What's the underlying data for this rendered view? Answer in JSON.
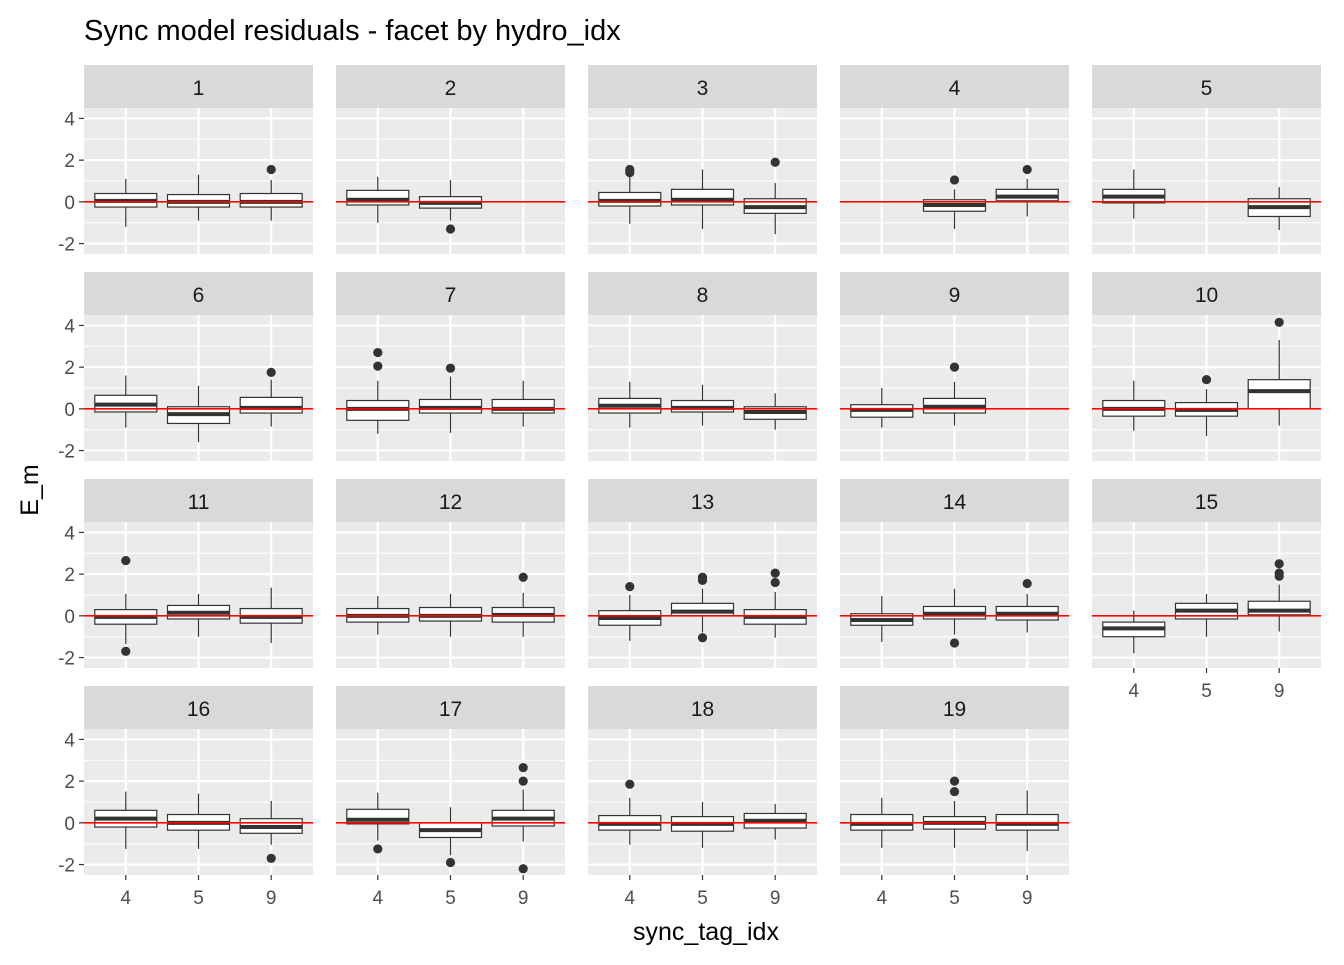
{
  "chart_data": {
    "type": "boxplot",
    "title": "Sync model residuals - facet by hydro_idx",
    "xlabel": "sync_tag_idx",
    "ylabel": "E_m",
    "x_categories": [
      "4",
      "5",
      "9"
    ],
    "y_ticks": [
      -2,
      0,
      2,
      4
    ],
    "ylim": [
      -2.5,
      4.5
    ],
    "reference_line": {
      "y": 0,
      "color": "#ff0000"
    },
    "colors": {
      "panel_bg": "#ebebeb",
      "strip_bg": "#d9d9d9",
      "grid": "#ffffff",
      "box_fill": "#ffffff",
      "box_line": "#333333",
      "text": "#4d4d4d"
    },
    "facets": [
      {
        "label": "1",
        "boxes": [
          {
            "x": "4",
            "low": -1.2,
            "q1": -0.25,
            "median": 0.05,
            "q3": 0.4,
            "high": 1.1,
            "outliers": []
          },
          {
            "x": "5",
            "low": -0.9,
            "q1": -0.25,
            "median": 0.0,
            "q3": 0.35,
            "high": 1.3,
            "outliers": []
          },
          {
            "x": "9",
            "low": -0.9,
            "q1": -0.25,
            "median": 0.0,
            "q3": 0.4,
            "high": 1.05,
            "outliers": [
              1.55
            ]
          }
        ]
      },
      {
        "label": "2",
        "boxes": [
          {
            "x": "4",
            "low": -1.0,
            "q1": -0.15,
            "median": 0.1,
            "q3": 0.55,
            "high": 1.2,
            "outliers": []
          },
          {
            "x": "5",
            "low": -0.9,
            "q1": -0.3,
            "median": -0.05,
            "q3": 0.25,
            "high": 1.05,
            "outliers": [
              -1.3
            ]
          }
        ]
      },
      {
        "label": "3",
        "boxes": [
          {
            "x": "4",
            "low": -1.05,
            "q1": -0.2,
            "median": 0.05,
            "q3": 0.45,
            "high": 1.2,
            "outliers": [
              1.4,
              1.55
            ]
          },
          {
            "x": "5",
            "low": -1.3,
            "q1": -0.15,
            "median": 0.1,
            "q3": 0.6,
            "high": 1.55,
            "outliers": []
          },
          {
            "x": "9",
            "low": -1.55,
            "q1": -0.55,
            "median": -0.25,
            "q3": 0.15,
            "high": 0.9,
            "outliers": [
              1.9
            ]
          }
        ]
      },
      {
        "label": "4",
        "boxes": [
          {
            "x": "5",
            "low": -1.3,
            "q1": -0.45,
            "median": -0.15,
            "q3": 0.1,
            "high": 0.6,
            "outliers": [
              1.05
            ]
          },
          {
            "x": "9",
            "low": -0.7,
            "q1": 0.05,
            "median": 0.25,
            "q3": 0.6,
            "high": 1.1,
            "outliers": [
              1.55
            ]
          }
        ]
      },
      {
        "label": "5",
        "boxes": [
          {
            "x": "4",
            "low": -0.8,
            "q1": -0.05,
            "median": 0.25,
            "q3": 0.6,
            "high": 1.55,
            "outliers": []
          },
          {
            "x": "9",
            "low": -1.35,
            "q1": -0.7,
            "median": -0.25,
            "q3": 0.15,
            "high": 0.7,
            "outliers": []
          }
        ]
      },
      {
        "label": "6",
        "boxes": [
          {
            "x": "4",
            "low": -0.9,
            "q1": -0.15,
            "median": 0.2,
            "q3": 0.65,
            "high": 1.6,
            "outliers": []
          },
          {
            "x": "5",
            "low": -1.6,
            "q1": -0.7,
            "median": -0.25,
            "q3": 0.1,
            "high": 1.1,
            "outliers": []
          },
          {
            "x": "9",
            "low": -0.85,
            "q1": -0.2,
            "median": 0.05,
            "q3": 0.55,
            "high": 1.4,
            "outliers": [
              1.75
            ]
          }
        ]
      },
      {
        "label": "7",
        "boxes": [
          {
            "x": "4",
            "low": -1.2,
            "q1": -0.55,
            "median": 0.0,
            "q3": 0.4,
            "high": 1.35,
            "outliers": [
              2.05,
              2.7
            ]
          },
          {
            "x": "5",
            "low": -1.15,
            "q1": -0.2,
            "median": 0.05,
            "q3": 0.45,
            "high": 1.55,
            "outliers": [
              1.95
            ]
          },
          {
            "x": "9",
            "low": -0.85,
            "q1": -0.2,
            "median": 0.0,
            "q3": 0.45,
            "high": 1.35,
            "outliers": []
          }
        ]
      },
      {
        "label": "8",
        "boxes": [
          {
            "x": "4",
            "low": -0.9,
            "q1": -0.2,
            "median": 0.15,
            "q3": 0.5,
            "high": 1.3,
            "outliers": []
          },
          {
            "x": "5",
            "low": -0.8,
            "q1": -0.15,
            "median": 0.05,
            "q3": 0.4,
            "high": 1.15,
            "outliers": []
          },
          {
            "x": "9",
            "low": -1.0,
            "q1": -0.5,
            "median": -0.15,
            "q3": 0.1,
            "high": 0.75,
            "outliers": []
          }
        ]
      },
      {
        "label": "9",
        "boxes": [
          {
            "x": "4",
            "low": -0.9,
            "q1": -0.4,
            "median": -0.05,
            "q3": 0.2,
            "high": 1.0,
            "outliers": []
          },
          {
            "x": "5",
            "low": -0.8,
            "q1": -0.2,
            "median": 0.1,
            "q3": 0.5,
            "high": 1.3,
            "outliers": [
              2.0
            ]
          }
        ]
      },
      {
        "label": "10",
        "boxes": [
          {
            "x": "4",
            "low": -1.05,
            "q1": -0.35,
            "median": 0.0,
            "q3": 0.4,
            "high": 1.35,
            "outliers": []
          },
          {
            "x": "5",
            "low": -1.3,
            "q1": -0.35,
            "median": -0.05,
            "q3": 0.3,
            "high": 0.95,
            "outliers": [
              1.4
            ]
          },
          {
            "x": "9",
            "low": -0.8,
            "q1": 0.0,
            "median": 0.85,
            "q3": 1.4,
            "high": 3.3,
            "outliers": [
              4.15
            ]
          }
        ]
      },
      {
        "label": "11",
        "boxes": [
          {
            "x": "4",
            "low": -1.35,
            "q1": -0.4,
            "median": -0.05,
            "q3": 0.3,
            "high": 1.05,
            "outliers": [
              2.65,
              -1.7
            ]
          },
          {
            "x": "5",
            "low": -1.0,
            "q1": -0.15,
            "median": 0.15,
            "q3": 0.5,
            "high": 1.05,
            "outliers": []
          },
          {
            "x": "9",
            "low": -1.3,
            "q1": -0.35,
            "median": -0.05,
            "q3": 0.35,
            "high": 1.35,
            "outliers": []
          }
        ]
      },
      {
        "label": "12",
        "boxes": [
          {
            "x": "4",
            "low": -0.9,
            "q1": -0.3,
            "median": 0.0,
            "q3": 0.35,
            "high": 0.95,
            "outliers": []
          },
          {
            "x": "5",
            "low": -1.0,
            "q1": -0.25,
            "median": 0.0,
            "q3": 0.4,
            "high": 1.05,
            "outliers": []
          },
          {
            "x": "9",
            "low": -1.0,
            "q1": -0.3,
            "median": 0.05,
            "q3": 0.4,
            "high": 1.1,
            "outliers": [
              1.85
            ]
          }
        ]
      },
      {
        "label": "13",
        "boxes": [
          {
            "x": "4",
            "low": -1.2,
            "q1": -0.45,
            "median": -0.1,
            "q3": 0.25,
            "high": 1.0,
            "outliers": [
              1.4
            ]
          },
          {
            "x": "5",
            "low": -0.8,
            "q1": 0.0,
            "median": 0.2,
            "q3": 0.6,
            "high": 1.3,
            "outliers": [
              1.7,
              1.85,
              -1.05
            ]
          },
          {
            "x": "9",
            "low": -1.05,
            "q1": -0.4,
            "median": -0.05,
            "q3": 0.3,
            "high": 1.15,
            "outliers": [
              1.6,
              2.05
            ]
          }
        ]
      },
      {
        "label": "14",
        "boxes": [
          {
            "x": "4",
            "low": -1.25,
            "q1": -0.45,
            "median": -0.2,
            "q3": 0.1,
            "high": 0.95,
            "outliers": []
          },
          {
            "x": "5",
            "low": -0.9,
            "q1": -0.15,
            "median": 0.1,
            "q3": 0.45,
            "high": 1.3,
            "outliers": [
              -1.3
            ]
          },
          {
            "x": "9",
            "low": -0.8,
            "q1": -0.2,
            "median": 0.1,
            "q3": 0.45,
            "high": 1.05,
            "outliers": [
              1.55
            ]
          }
        ]
      },
      {
        "label": "15",
        "boxes": [
          {
            "x": "4",
            "low": -1.8,
            "q1": -1.0,
            "median": -0.6,
            "q3": -0.3,
            "high": 0.25,
            "outliers": []
          },
          {
            "x": "5",
            "low": -1.0,
            "q1": -0.15,
            "median": 0.25,
            "q3": 0.6,
            "high": 1.05,
            "outliers": []
          },
          {
            "x": "9",
            "low": -0.75,
            "q1": 0.05,
            "median": 0.25,
            "q3": 0.7,
            "high": 1.5,
            "outliers": [
              1.9,
              2.05,
              2.5
            ]
          }
        ]
      },
      {
        "label": "16",
        "boxes": [
          {
            "x": "4",
            "low": -1.25,
            "q1": -0.2,
            "median": 0.2,
            "q3": 0.6,
            "high": 1.5,
            "outliers": []
          },
          {
            "x": "5",
            "low": -1.25,
            "q1": -0.35,
            "median": 0.0,
            "q3": 0.4,
            "high": 1.4,
            "outliers": []
          },
          {
            "x": "9",
            "low": -1.05,
            "q1": -0.5,
            "median": -0.2,
            "q3": 0.2,
            "high": 1.05,
            "outliers": [
              -1.7
            ]
          }
        ]
      },
      {
        "label": "17",
        "boxes": [
          {
            "x": "4",
            "low": -0.85,
            "q1": -0.05,
            "median": 0.15,
            "q3": 0.65,
            "high": 1.45,
            "outliers": [
              -1.25
            ]
          },
          {
            "x": "5",
            "low": -1.55,
            "q1": -0.7,
            "median": -0.35,
            "q3": 0.0,
            "high": 0.75,
            "outliers": [
              -1.9
            ]
          },
          {
            "x": "9",
            "low": -0.9,
            "q1": -0.15,
            "median": 0.2,
            "q3": 0.6,
            "high": 1.6,
            "outliers": [
              2.0,
              2.65,
              -2.2
            ]
          }
        ]
      },
      {
        "label": "18",
        "boxes": [
          {
            "x": "4",
            "low": -1.05,
            "q1": -0.35,
            "median": -0.05,
            "q3": 0.35,
            "high": 1.2,
            "outliers": [
              1.85
            ]
          },
          {
            "x": "5",
            "low": -1.2,
            "q1": -0.4,
            "median": -0.05,
            "q3": 0.3,
            "high": 1.0,
            "outliers": []
          },
          {
            "x": "9",
            "low": -0.8,
            "q1": -0.25,
            "median": 0.1,
            "q3": 0.45,
            "high": 0.9,
            "outliers": []
          }
        ]
      },
      {
        "label": "19",
        "boxes": [
          {
            "x": "4",
            "low": -1.2,
            "q1": -0.35,
            "median": -0.05,
            "q3": 0.4,
            "high": 1.2,
            "outliers": []
          },
          {
            "x": "5",
            "low": -1.2,
            "q1": -0.3,
            "median": 0.0,
            "q3": 0.3,
            "high": 1.05,
            "outliers": [
              1.5,
              2.0
            ]
          },
          {
            "x": "9",
            "low": -1.35,
            "q1": -0.35,
            "median": -0.05,
            "q3": 0.4,
            "high": 1.55,
            "outliers": []
          }
        ]
      }
    ]
  }
}
